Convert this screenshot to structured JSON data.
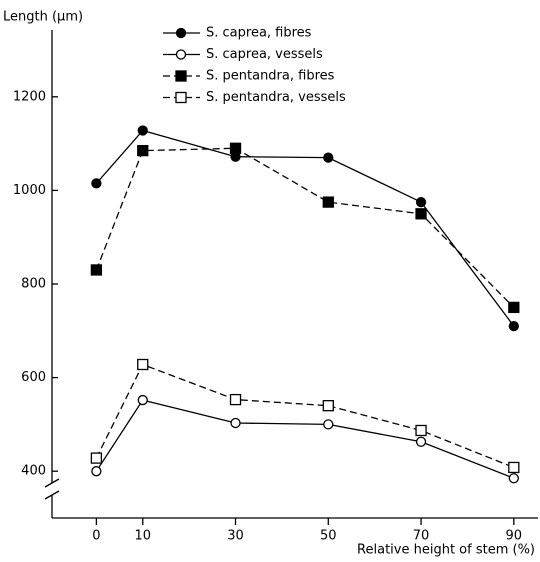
{
  "chart_data": {
    "type": "line",
    "y_label": "Length (µm)",
    "x_label": "Relative height of stem (%)",
    "x": [
      0,
      10,
      30,
      50,
      70,
      90
    ],
    "xlim": [
      -10,
      95
    ],
    "xticks": [
      0,
      10,
      30,
      50,
      70,
      90
    ],
    "ylim": [
      300,
      1300
    ],
    "yticks": [
      400,
      600,
      800,
      1000,
      1200
    ],
    "series": [
      {
        "name": "S. caprea, fibres",
        "color": "#000000",
        "marker": "circle",
        "filled": true,
        "dashed": false,
        "values": [
          1015,
          1128,
          1072,
          1070,
          975,
          710
        ]
      },
      {
        "name": "S. caprea, vessels",
        "color": "#000000",
        "marker": "circle",
        "filled": false,
        "dashed": false,
        "values": [
          400,
          552,
          503,
          500,
          463,
          385
        ]
      },
      {
        "name": "S. pentandra, fibres",
        "color": "#000000",
        "marker": "square",
        "filled": true,
        "dashed": true,
        "values": [
          830,
          1085,
          1090,
          975,
          950,
          750
        ]
      },
      {
        "name": "S. pentandra, vessels",
        "color": "#000000",
        "marker": "square",
        "filled": false,
        "dashed": true,
        "values": [
          428,
          628,
          553,
          540,
          487,
          408
        ]
      }
    ]
  }
}
